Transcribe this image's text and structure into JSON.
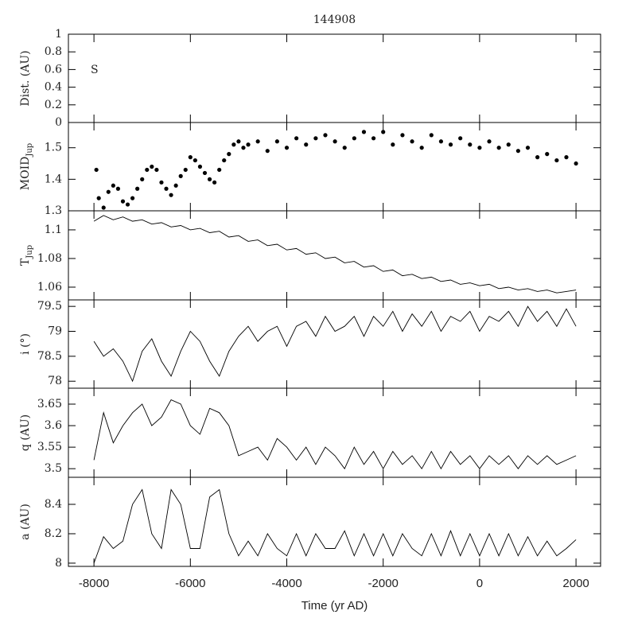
{
  "chart_data": [
    {
      "type": "line",
      "title": "144908",
      "ylabel": "Dist. (AU)",
      "annotations": [
        "S"
      ],
      "xlim": [
        -8530,
        2510
      ],
      "xticks": [
        -8000,
        -6000,
        -4000,
        -2000,
        0,
        2000
      ],
      "ylim": [
        0,
        1
      ],
      "yticks": [
        0,
        0.2,
        0.4,
        0.6,
        0.8,
        1
      ]
    },
    {
      "type": "scatter",
      "ylabel": "MOID",
      "ylabel_subscript": "Jup",
      "color": "#000000",
      "xlim": [
        -8530,
        2510
      ],
      "xticks": [
        -8000,
        -6000,
        -4000,
        -2000,
        0,
        2000
      ],
      "ylim": [
        1.3,
        1.58
      ],
      "yticks": [
        1.3,
        1.4,
        1.5
      ],
      "x": [
        -7950,
        -7900,
        -7800,
        -7700,
        -7600,
        -7500,
        -7400,
        -7300,
        -7200,
        -7100,
        -7000,
        -6900,
        -6800,
        -6700,
        -6600,
        -6500,
        -6400,
        -6300,
        -6200,
        -6100,
        -6000,
        -5900,
        -5800,
        -5700,
        -5600,
        -5500,
        -5400,
        -5300,
        -5200,
        -5100,
        -5000,
        -4900,
        -4800,
        -4600,
        -4400,
        -4200,
        -4000,
        -3800,
        -3600,
        -3400,
        -3200,
        -3000,
        -2800,
        -2600,
        -2400,
        -2200,
        -2000,
        -1800,
        -1600,
        -1400,
        -1200,
        -1000,
        -800,
        -600,
        -400,
        -200,
        0,
        200,
        400,
        600,
        800,
        1000,
        1200,
        1400,
        1600,
        1800,
        2000
      ],
      "values": [
        1.43,
        1.34,
        1.31,
        1.36,
        1.38,
        1.37,
        1.33,
        1.32,
        1.34,
        1.37,
        1.4,
        1.43,
        1.44,
        1.43,
        1.39,
        1.37,
        1.35,
        1.38,
        1.41,
        1.43,
        1.47,
        1.46,
        1.44,
        1.42,
        1.4,
        1.39,
        1.43,
        1.46,
        1.48,
        1.51,
        1.52,
        1.5,
        1.51,
        1.52,
        1.49,
        1.52,
        1.5,
        1.53,
        1.51,
        1.53,
        1.54,
        1.52,
        1.5,
        1.53,
        1.55,
        1.53,
        1.55,
        1.51,
        1.54,
        1.52,
        1.5,
        1.54,
        1.52,
        1.51,
        1.53,
        1.51,
        1.5,
        1.52,
        1.5,
        1.51,
        1.49,
        1.5,
        1.47,
        1.48,
        1.46,
        1.47,
        1.45
      ]
    },
    {
      "type": "line",
      "ylabel": "T",
      "ylabel_subscript": "Jup",
      "color": "#000000",
      "xlim": [
        -8530,
        2510
      ],
      "xticks": [
        -8000,
        -6000,
        -4000,
        -2000,
        0,
        2000
      ],
      "ylim": [
        1.0511,
        1.1133
      ],
      "yticks": [
        1.06,
        1.08,
        1.1
      ],
      "x": [
        -8000,
        -7800,
        -7600,
        -7400,
        -7200,
        -7000,
        -6800,
        -6600,
        -6400,
        -6200,
        -6000,
        -5800,
        -5600,
        -5400,
        -5200,
        -5000,
        -4800,
        -4600,
        -4400,
        -4200,
        -4000,
        -3800,
        -3600,
        -3400,
        -3200,
        -3000,
        -2800,
        -2600,
        -2400,
        -2200,
        -2000,
        -1800,
        -1600,
        -1400,
        -1200,
        -1000,
        -800,
        -600,
        -400,
        -200,
        0,
        200,
        400,
        600,
        800,
        1000,
        1200,
        1400,
        1600,
        1800,
        2000
      ],
      "values": [
        1.106,
        1.11,
        1.107,
        1.109,
        1.106,
        1.107,
        1.104,
        1.105,
        1.102,
        1.103,
        1.1,
        1.101,
        1.098,
        1.099,
        1.095,
        1.096,
        1.092,
        1.093,
        1.089,
        1.09,
        1.086,
        1.087,
        1.083,
        1.084,
        1.08,
        1.081,
        1.077,
        1.078,
        1.074,
        1.075,
        1.071,
        1.072,
        1.068,
        1.069,
        1.066,
        1.067,
        1.064,
        1.065,
        1.062,
        1.063,
        1.061,
        1.062,
        1.059,
        1.06,
        1.058,
        1.059,
        1.057,
        1.058,
        1.056,
        1.057,
        1.058
      ]
    },
    {
      "type": "line",
      "ylabel": "i (°)",
      "color": "#000000",
      "xlim": [
        -8530,
        2510
      ],
      "xticks": [
        -8000,
        -6000,
        -4000,
        -2000,
        0,
        2000
      ],
      "ylim": [
        77.86,
        79.63
      ],
      "yticks": [
        78,
        78.5,
        79,
        79.5
      ],
      "x": [
        -8000,
        -7800,
        -7600,
        -7400,
        -7200,
        -7000,
        -6800,
        -6600,
        -6400,
        -6200,
        -6000,
        -5800,
        -5600,
        -5400,
        -5200,
        -5000,
        -4800,
        -4600,
        -4400,
        -4200,
        -4000,
        -3800,
        -3600,
        -3400,
        -3200,
        -3000,
        -2800,
        -2600,
        -2400,
        -2200,
        -2000,
        -1800,
        -1600,
        -1400,
        -1200,
        -1000,
        -800,
        -600,
        -400,
        -200,
        0,
        200,
        400,
        600,
        800,
        1000,
        1200,
        1400,
        1600,
        1800,
        2000
      ],
      "values": [
        78.8,
        78.5,
        78.65,
        78.4,
        78.0,
        78.6,
        78.85,
        78.4,
        78.1,
        78.6,
        79.0,
        78.8,
        78.4,
        78.1,
        78.6,
        78.9,
        79.1,
        78.8,
        79.0,
        79.1,
        78.7,
        79.1,
        79.2,
        78.9,
        79.3,
        79.0,
        79.1,
        79.3,
        78.9,
        79.3,
        79.1,
        79.4,
        79.0,
        79.35,
        79.1,
        79.4,
        79.0,
        79.3,
        79.2,
        79.4,
        79.0,
        79.3,
        79.2,
        79.4,
        79.1,
        79.5,
        79.2,
        79.4,
        79.1,
        79.45,
        79.1
      ]
    },
    {
      "type": "line",
      "ylabel": "q (AU)",
      "color": "#000000",
      "xlim": [
        -8530,
        2510
      ],
      "xticks": [
        -8000,
        -6000,
        -4000,
        -2000,
        0,
        2000
      ],
      "ylim": [
        3.48,
        3.687
      ],
      "yticks": [
        3.5,
        3.55,
        3.6,
        3.65
      ],
      "x": [
        -8000,
        -7800,
        -7600,
        -7400,
        -7200,
        -7000,
        -6800,
        -6600,
        -6400,
        -6200,
        -6000,
        -5800,
        -5600,
        -5400,
        -5200,
        -5000,
        -4800,
        -4600,
        -4400,
        -4200,
        -4000,
        -3800,
        -3600,
        -3400,
        -3200,
        -3000,
        -2800,
        -2600,
        -2400,
        -2200,
        -2000,
        -1800,
        -1600,
        -1400,
        -1200,
        -1000,
        -800,
        -600,
        -400,
        -200,
        0,
        200,
        400,
        600,
        800,
        1000,
        1200,
        1400,
        1600,
        1800,
        2000
      ],
      "values": [
        3.52,
        3.63,
        3.56,
        3.6,
        3.63,
        3.65,
        3.6,
        3.62,
        3.66,
        3.65,
        3.6,
        3.58,
        3.64,
        3.63,
        3.6,
        3.53,
        3.54,
        3.55,
        3.52,
        3.57,
        3.55,
        3.52,
        3.55,
        3.51,
        3.55,
        3.53,
        3.5,
        3.55,
        3.51,
        3.54,
        3.5,
        3.54,
        3.51,
        3.53,
        3.5,
        3.54,
        3.5,
        3.54,
        3.51,
        3.53,
        3.5,
        3.53,
        3.51,
        3.53,
        3.5,
        3.53,
        3.51,
        3.53,
        3.51,
        3.52,
        3.53
      ]
    },
    {
      "type": "line",
      "ylabel": "a (AU)",
      "xlabel": "Time (yr AD)",
      "color": "#000000",
      "xlim": [
        -8530,
        2510
      ],
      "xticks": [
        -8000,
        -6000,
        -4000,
        -2000,
        0,
        2000
      ],
      "ylim": [
        7.978,
        8.584
      ],
      "yticks": [
        8,
        8.2,
        8.4
      ],
      "x": [
        -8000,
        -7800,
        -7600,
        -7400,
        -7200,
        -7000,
        -6800,
        -6600,
        -6400,
        -6200,
        -6000,
        -5800,
        -5600,
        -5400,
        -5200,
        -5000,
        -4800,
        -4600,
        -4400,
        -4200,
        -4000,
        -3800,
        -3600,
        -3400,
        -3200,
        -3000,
        -2800,
        -2600,
        -2400,
        -2200,
        -2000,
        -1800,
        -1600,
        -1400,
        -1200,
        -1000,
        -800,
        -600,
        -400,
        -200,
        0,
        200,
        400,
        600,
        800,
        1000,
        1200,
        1400,
        1600,
        1800,
        2000
      ],
      "values": [
        8.0,
        8.18,
        8.1,
        8.15,
        8.4,
        8.5,
        8.2,
        8.1,
        8.5,
        8.4,
        8.1,
        8.1,
        8.45,
        8.5,
        8.2,
        8.05,
        8.15,
        8.05,
        8.2,
        8.1,
        8.05,
        8.2,
        8.05,
        8.2,
        8.1,
        8.1,
        8.22,
        8.05,
        8.2,
        8.05,
        8.2,
        8.05,
        8.2,
        8.1,
        8.05,
        8.2,
        8.05,
        8.22,
        8.05,
        8.2,
        8.05,
        8.2,
        8.05,
        8.2,
        8.05,
        8.18,
        8.05,
        8.15,
        8.05,
        8.1,
        8.16
      ]
    }
  ]
}
